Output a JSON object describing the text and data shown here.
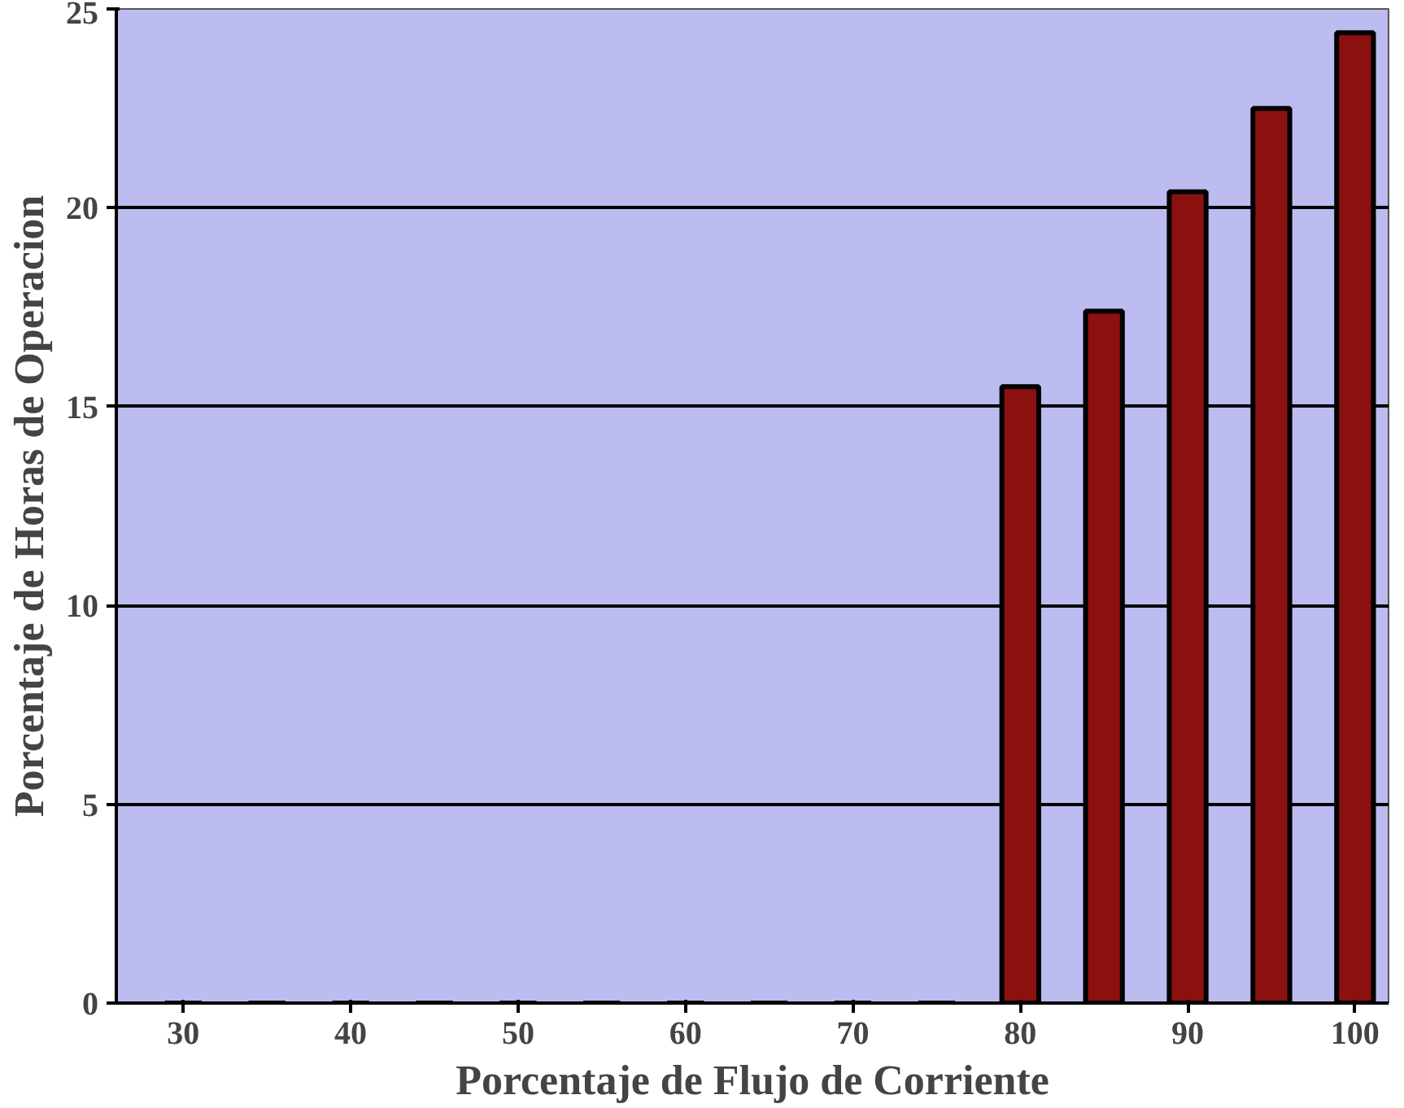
{
  "chart_data": {
    "type": "bar",
    "xlabel": "Porcentaje de Flujo de Corriente",
    "ylabel": "Porcentaje de Horas de Operacion",
    "x": [
      30,
      35,
      40,
      45,
      50,
      55,
      60,
      65,
      70,
      75,
      80,
      85,
      90,
      95,
      100
    ],
    "values": [
      0,
      0,
      0,
      0,
      0,
      0,
      0,
      0,
      0,
      0,
      15.5,
      17.4,
      20.4,
      22.5,
      24.4
    ],
    "color": "#8b1010",
    "xlim": [
      26,
      102
    ],
    "xticks": [
      30,
      40,
      50,
      60,
      70,
      80,
      90,
      100
    ],
    "ylim": [
      0,
      25
    ],
    "yticks": [
      0,
      5,
      10,
      15,
      20,
      25
    ],
    "grid": "y"
  }
}
